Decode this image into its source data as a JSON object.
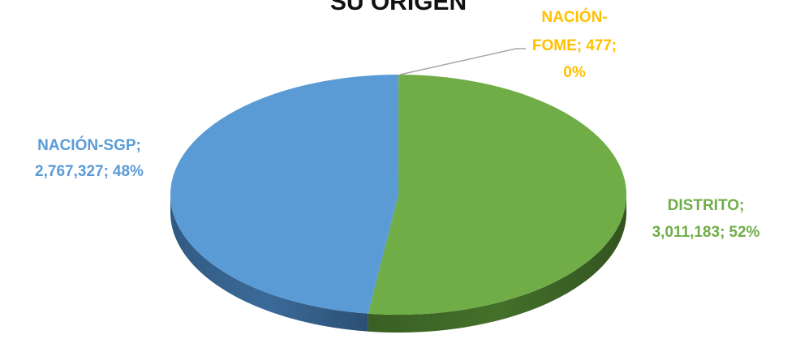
{
  "chart_data": {
    "type": "pie",
    "title": "SU ORIGEN",
    "categories": [
      "NACIÓN-FOME",
      "DISTRITO",
      "NACIÓN-SGP"
    ],
    "values": [
      477,
      3011183,
      2767327
    ],
    "value_labels": [
      "477",
      "3,011,183",
      "2,767,327"
    ],
    "percents": [
      0,
      52,
      48
    ],
    "percent_labels": [
      "0%",
      "52%",
      "48%"
    ],
    "label_separator": ";",
    "colors": [
      "#ffc000",
      "#70ad47",
      "#5b9bd5"
    ],
    "side_colors": [
      "#b38600",
      "#44702a",
      "#3a6a99"
    ]
  }
}
